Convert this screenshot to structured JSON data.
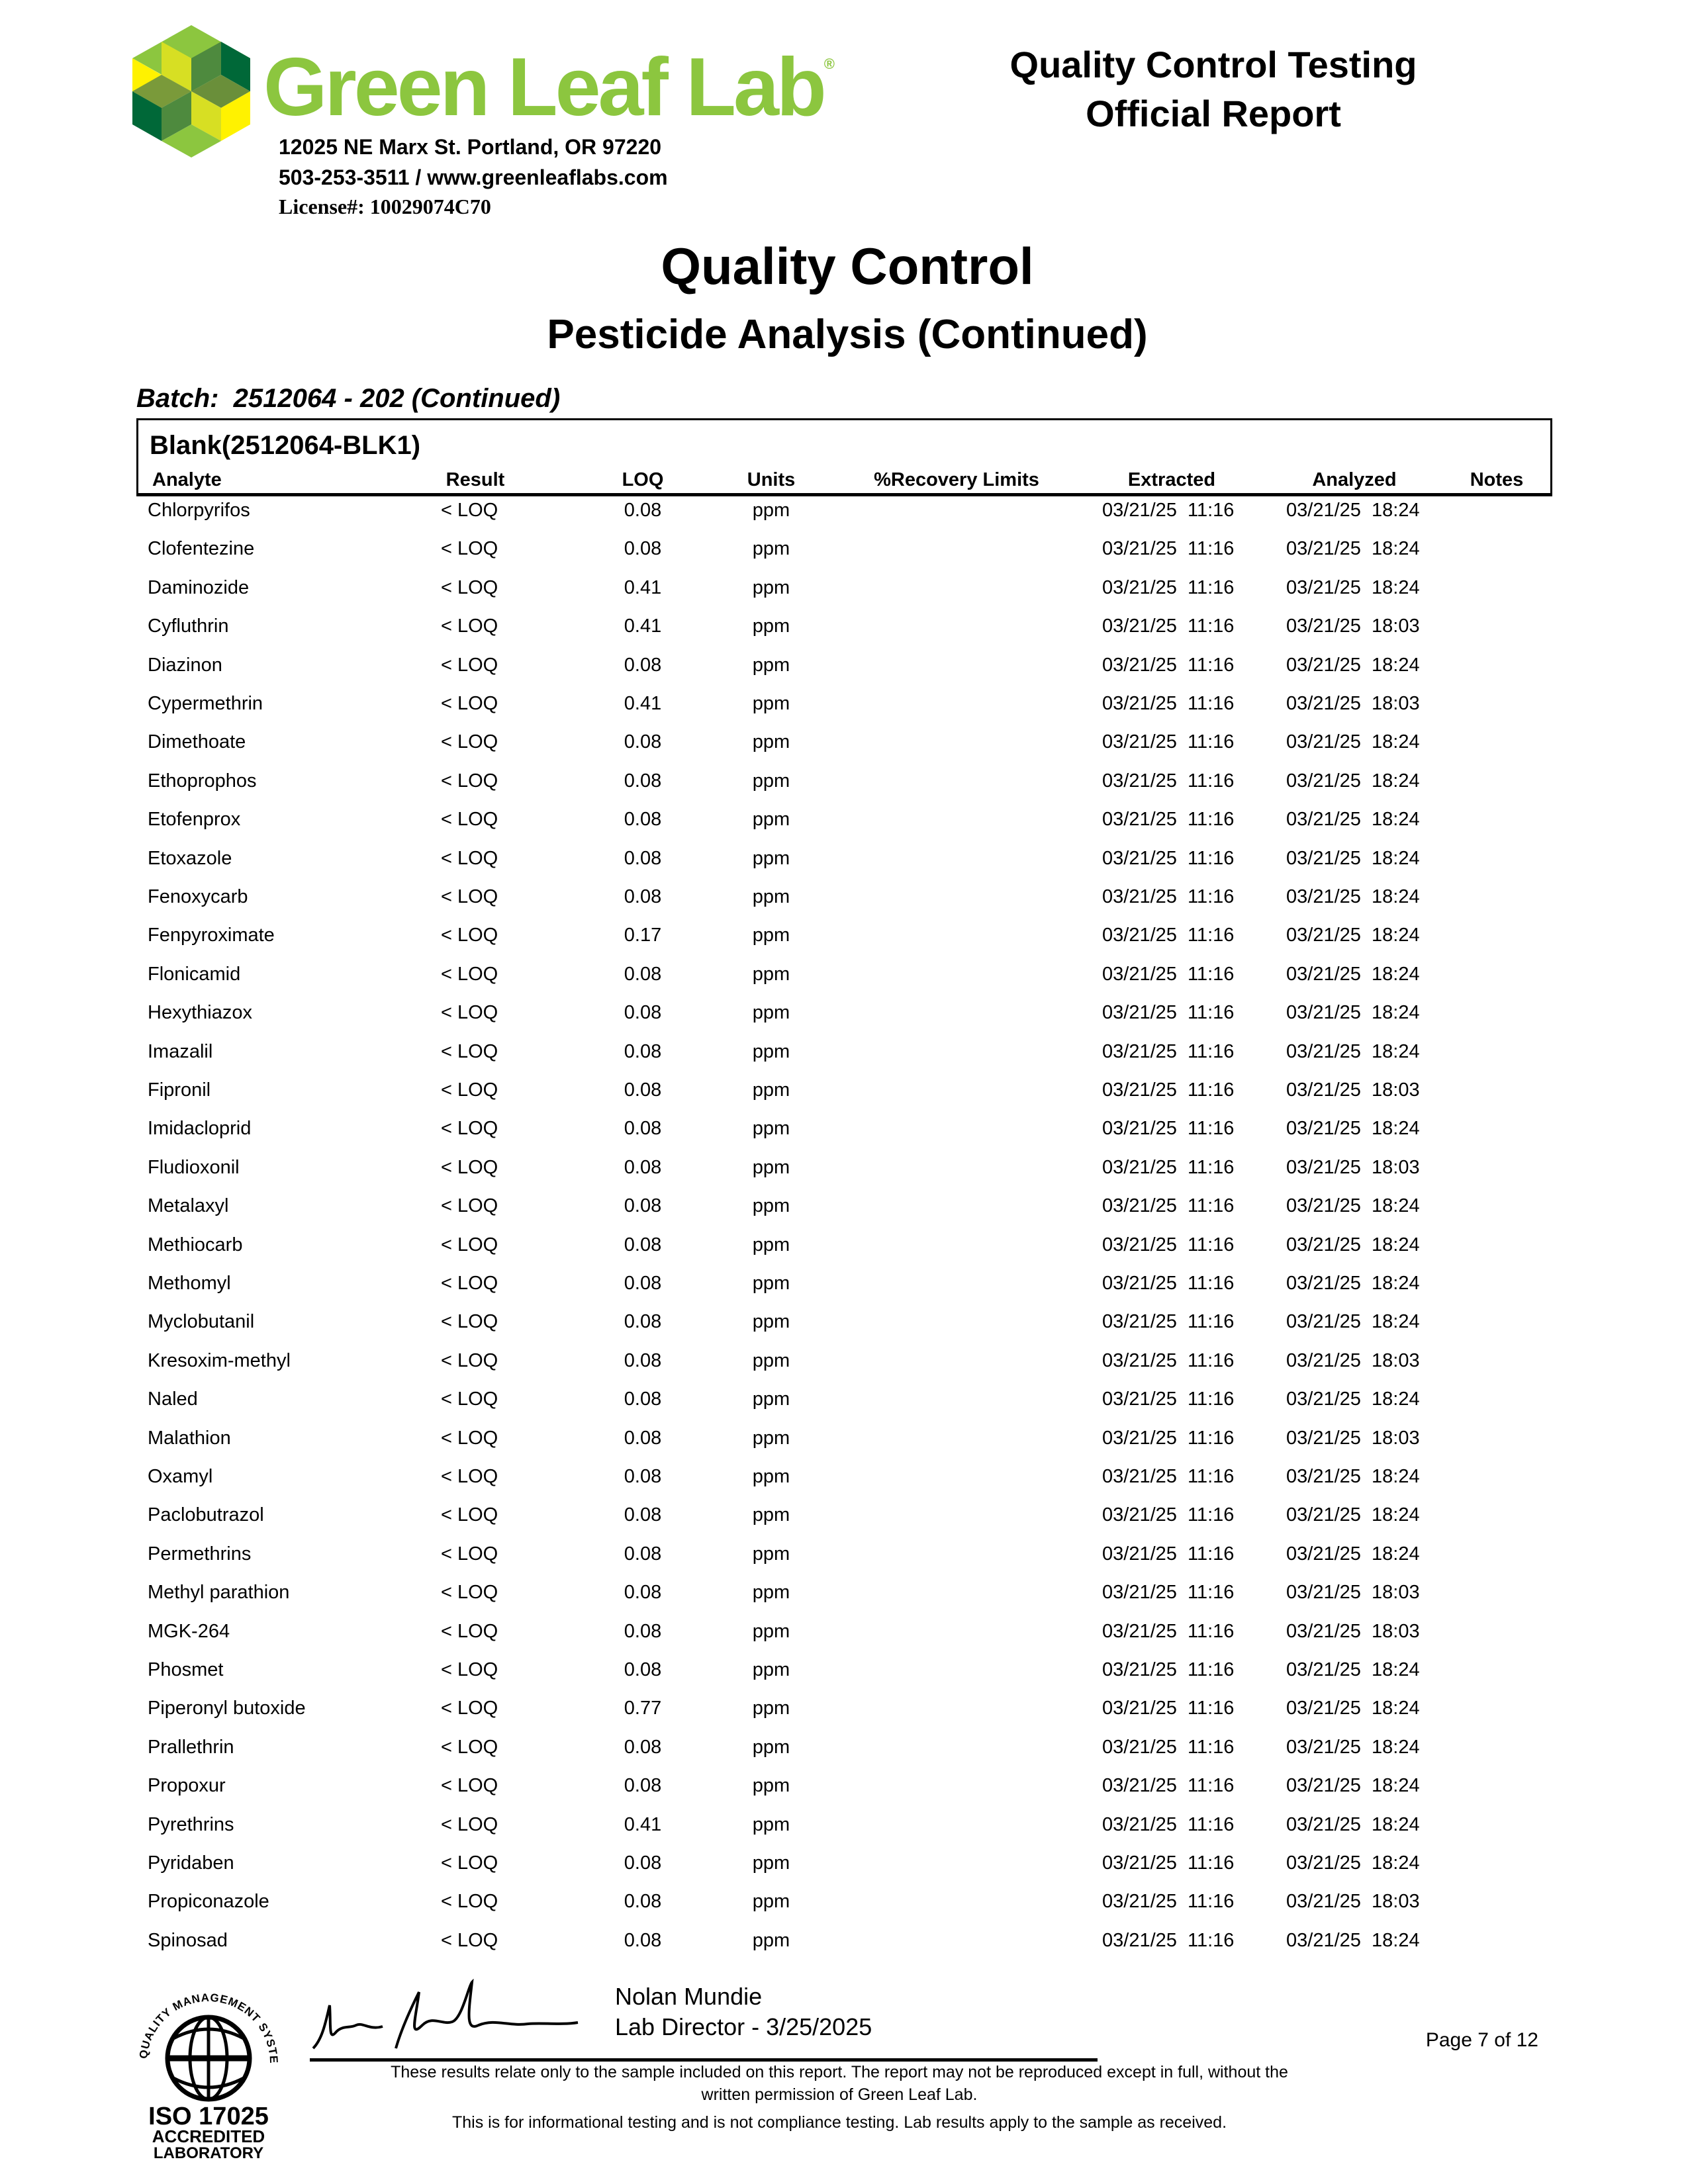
{
  "header": {
    "logo_text": "Green Leaf Lab",
    "address": "12025 NE Marx St. Portland, OR 97220",
    "contact": "503-253-3511 / www.greenleaflabs.com",
    "license": "License#: 10029074C70",
    "report_title_line1": "Quality Control Testing",
    "report_title_line2": "Official Report",
    "logo_colors": [
      "#006838",
      "#8cc63f",
      "#d7df23",
      "#fff200",
      "#4e8a3e",
      "#7a9a3a"
    ]
  },
  "title": "Quality Control",
  "subtitle": "Pesticide Analysis (Continued)",
  "batch": "Batch:  2512064 - 202 (Continued)",
  "table": {
    "title": "Blank(2512064-BLK1)",
    "columns": [
      "Analyte",
      "Result",
      "LOQ",
      "Units",
      "%Recovery Limits",
      "Extracted",
      "Analyzed",
      "Notes"
    ],
    "rows": [
      [
        "Chlorpyrifos",
        "< LOQ",
        "0.08",
        "ppm",
        "",
        "03/21/25  11:16",
        "03/21/25  18:24",
        ""
      ],
      [
        "Clofentezine",
        "< LOQ",
        "0.08",
        "ppm",
        "",
        "03/21/25  11:16",
        "03/21/25  18:24",
        ""
      ],
      [
        "Daminozide",
        "< LOQ",
        "0.41",
        "ppm",
        "",
        "03/21/25  11:16",
        "03/21/25  18:24",
        ""
      ],
      [
        "Cyfluthrin",
        "< LOQ",
        "0.41",
        "ppm",
        "",
        "03/21/25  11:16",
        "03/21/25  18:03",
        ""
      ],
      [
        "Diazinon",
        "< LOQ",
        "0.08",
        "ppm",
        "",
        "03/21/25  11:16",
        "03/21/25  18:24",
        ""
      ],
      [
        "Cypermethrin",
        "< LOQ",
        "0.41",
        "ppm",
        "",
        "03/21/25  11:16",
        "03/21/25  18:03",
        ""
      ],
      [
        "Dimethoate",
        "< LOQ",
        "0.08",
        "ppm",
        "",
        "03/21/25  11:16",
        "03/21/25  18:24",
        ""
      ],
      [
        "Ethoprophos",
        "< LOQ",
        "0.08",
        "ppm",
        "",
        "03/21/25  11:16",
        "03/21/25  18:24",
        ""
      ],
      [
        "Etofenprox",
        "< LOQ",
        "0.08",
        "ppm",
        "",
        "03/21/25  11:16",
        "03/21/25  18:24",
        ""
      ],
      [
        "Etoxazole",
        "< LOQ",
        "0.08",
        "ppm",
        "",
        "03/21/25  11:16",
        "03/21/25  18:24",
        ""
      ],
      [
        "Fenoxycarb",
        "< LOQ",
        "0.08",
        "ppm",
        "",
        "03/21/25  11:16",
        "03/21/25  18:24",
        ""
      ],
      [
        "Fenpyroximate",
        "< LOQ",
        "0.17",
        "ppm",
        "",
        "03/21/25  11:16",
        "03/21/25  18:24",
        ""
      ],
      [
        "Flonicamid",
        "< LOQ",
        "0.08",
        "ppm",
        "",
        "03/21/25  11:16",
        "03/21/25  18:24",
        ""
      ],
      [
        "Hexythiazox",
        "< LOQ",
        "0.08",
        "ppm",
        "",
        "03/21/25  11:16",
        "03/21/25  18:24",
        ""
      ],
      [
        "Imazalil",
        "< LOQ",
        "0.08",
        "ppm",
        "",
        "03/21/25  11:16",
        "03/21/25  18:24",
        ""
      ],
      [
        "Fipronil",
        "< LOQ",
        "0.08",
        "ppm",
        "",
        "03/21/25  11:16",
        "03/21/25  18:03",
        ""
      ],
      [
        "Imidacloprid",
        "< LOQ",
        "0.08",
        "ppm",
        "",
        "03/21/25  11:16",
        "03/21/25  18:24",
        ""
      ],
      [
        "Fludioxonil",
        "< LOQ",
        "0.08",
        "ppm",
        "",
        "03/21/25  11:16",
        "03/21/25  18:03",
        ""
      ],
      [
        "Metalaxyl",
        "< LOQ",
        "0.08",
        "ppm",
        "",
        "03/21/25  11:16",
        "03/21/25  18:24",
        ""
      ],
      [
        "Methiocarb",
        "< LOQ",
        "0.08",
        "ppm",
        "",
        "03/21/25  11:16",
        "03/21/25  18:24",
        ""
      ],
      [
        "Methomyl",
        "< LOQ",
        "0.08",
        "ppm",
        "",
        "03/21/25  11:16",
        "03/21/25  18:24",
        ""
      ],
      [
        "Myclobutanil",
        "< LOQ",
        "0.08",
        "ppm",
        "",
        "03/21/25  11:16",
        "03/21/25  18:24",
        ""
      ],
      [
        "Kresoxim-methyl",
        "< LOQ",
        "0.08",
        "ppm",
        "",
        "03/21/25  11:16",
        "03/21/25  18:03",
        ""
      ],
      [
        "Naled",
        "< LOQ",
        "0.08",
        "ppm",
        "",
        "03/21/25  11:16",
        "03/21/25  18:24",
        ""
      ],
      [
        "Malathion",
        "< LOQ",
        "0.08",
        "ppm",
        "",
        "03/21/25  11:16",
        "03/21/25  18:03",
        ""
      ],
      [
        "Oxamyl",
        "< LOQ",
        "0.08",
        "ppm",
        "",
        "03/21/25  11:16",
        "03/21/25  18:24",
        ""
      ],
      [
        "Paclobutrazol",
        "< LOQ",
        "0.08",
        "ppm",
        "",
        "03/21/25  11:16",
        "03/21/25  18:24",
        ""
      ],
      [
        "Permethrins",
        "< LOQ",
        "0.08",
        "ppm",
        "",
        "03/21/25  11:16",
        "03/21/25  18:24",
        ""
      ],
      [
        "Methyl parathion",
        "< LOQ",
        "0.08",
        "ppm",
        "",
        "03/21/25  11:16",
        "03/21/25  18:03",
        ""
      ],
      [
        "MGK-264",
        "< LOQ",
        "0.08",
        "ppm",
        "",
        "03/21/25  11:16",
        "03/21/25  18:03",
        ""
      ],
      [
        "Phosmet",
        "< LOQ",
        "0.08",
        "ppm",
        "",
        "03/21/25  11:16",
        "03/21/25  18:24",
        ""
      ],
      [
        "Piperonyl butoxide",
        "< LOQ",
        "0.77",
        "ppm",
        "",
        "03/21/25  11:16",
        "03/21/25  18:24",
        ""
      ],
      [
        "Prallethrin",
        "< LOQ",
        "0.08",
        "ppm",
        "",
        "03/21/25  11:16",
        "03/21/25  18:24",
        ""
      ],
      [
        "Propoxur",
        "< LOQ",
        "0.08",
        "ppm",
        "",
        "03/21/25  11:16",
        "03/21/25  18:24",
        ""
      ],
      [
        "Pyrethrins",
        "< LOQ",
        "0.41",
        "ppm",
        "",
        "03/21/25  11:16",
        "03/21/25  18:24",
        ""
      ],
      [
        "Pyridaben",
        "< LOQ",
        "0.08",
        "ppm",
        "",
        "03/21/25  11:16",
        "03/21/25  18:24",
        ""
      ],
      [
        "Propiconazole",
        "< LOQ",
        "0.08",
        "ppm",
        "",
        "03/21/25  11:16",
        "03/21/25  18:03",
        ""
      ],
      [
        "Spinosad",
        "< LOQ",
        "0.08",
        "ppm",
        "",
        "03/21/25  11:16",
        "03/21/25  18:24",
        ""
      ]
    ]
  },
  "footer": {
    "signer_name": "Nolan Mundie",
    "signer_title": "Lab Director - 3/25/2025",
    "page": "Page 7 of 12",
    "disclaimer_line1": "These results relate only to the sample included on this report. The report may not be reproduced except in full, without the",
    "disclaimer_line2": "written permission of Green Leaf Lab.",
    "disclaimer_line3": "This is for informational testing and is not compliance testing. Lab results apply to the sample as received.",
    "iso_badge": {
      "arc_text": "QUALITY MANAGEMENT SYSTEM",
      "line1": "ISO 17025",
      "line2": "ACCREDITED",
      "line3": "LABORATORY"
    }
  }
}
